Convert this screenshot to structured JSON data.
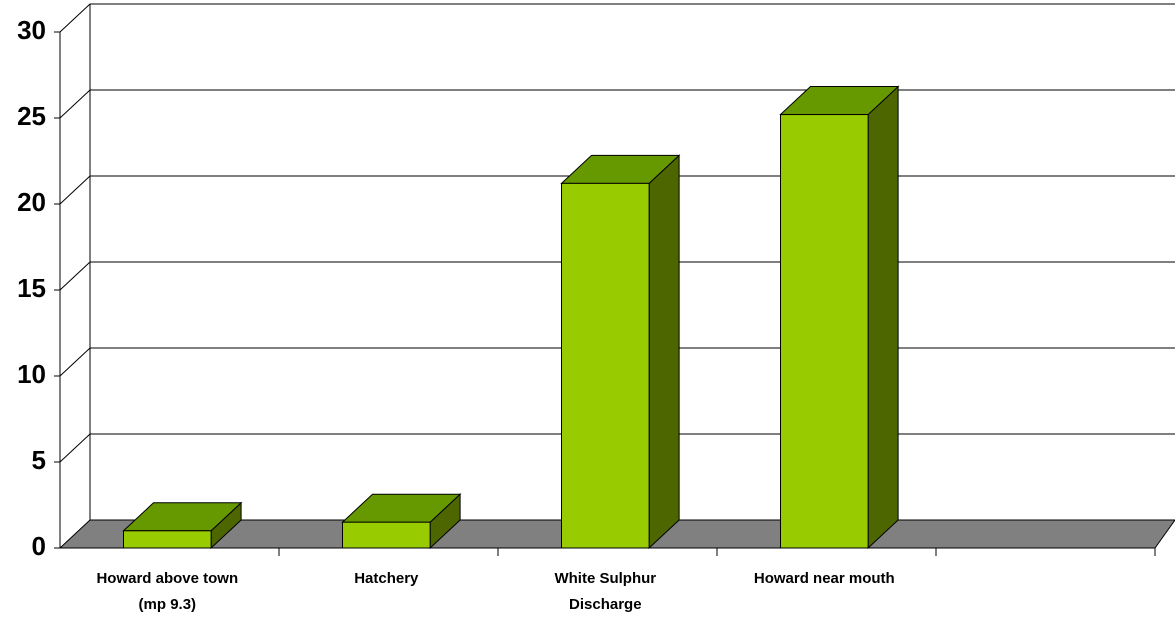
{
  "chart_data": {
    "type": "bar3d",
    "categories": [
      "Howard above town (mp 9.3)",
      "Hatchery",
      "White Sulphur Discharge",
      "Howard near mouth",
      null
    ],
    "values": [
      1,
      1.5,
      21.2,
      25.2,
      null
    ],
    "color": "#99cc00",
    "ylim": [
      0,
      30
    ],
    "yticks": [
      0,
      5,
      10,
      15,
      20,
      25,
      30
    ],
    "grid": true
  }
}
